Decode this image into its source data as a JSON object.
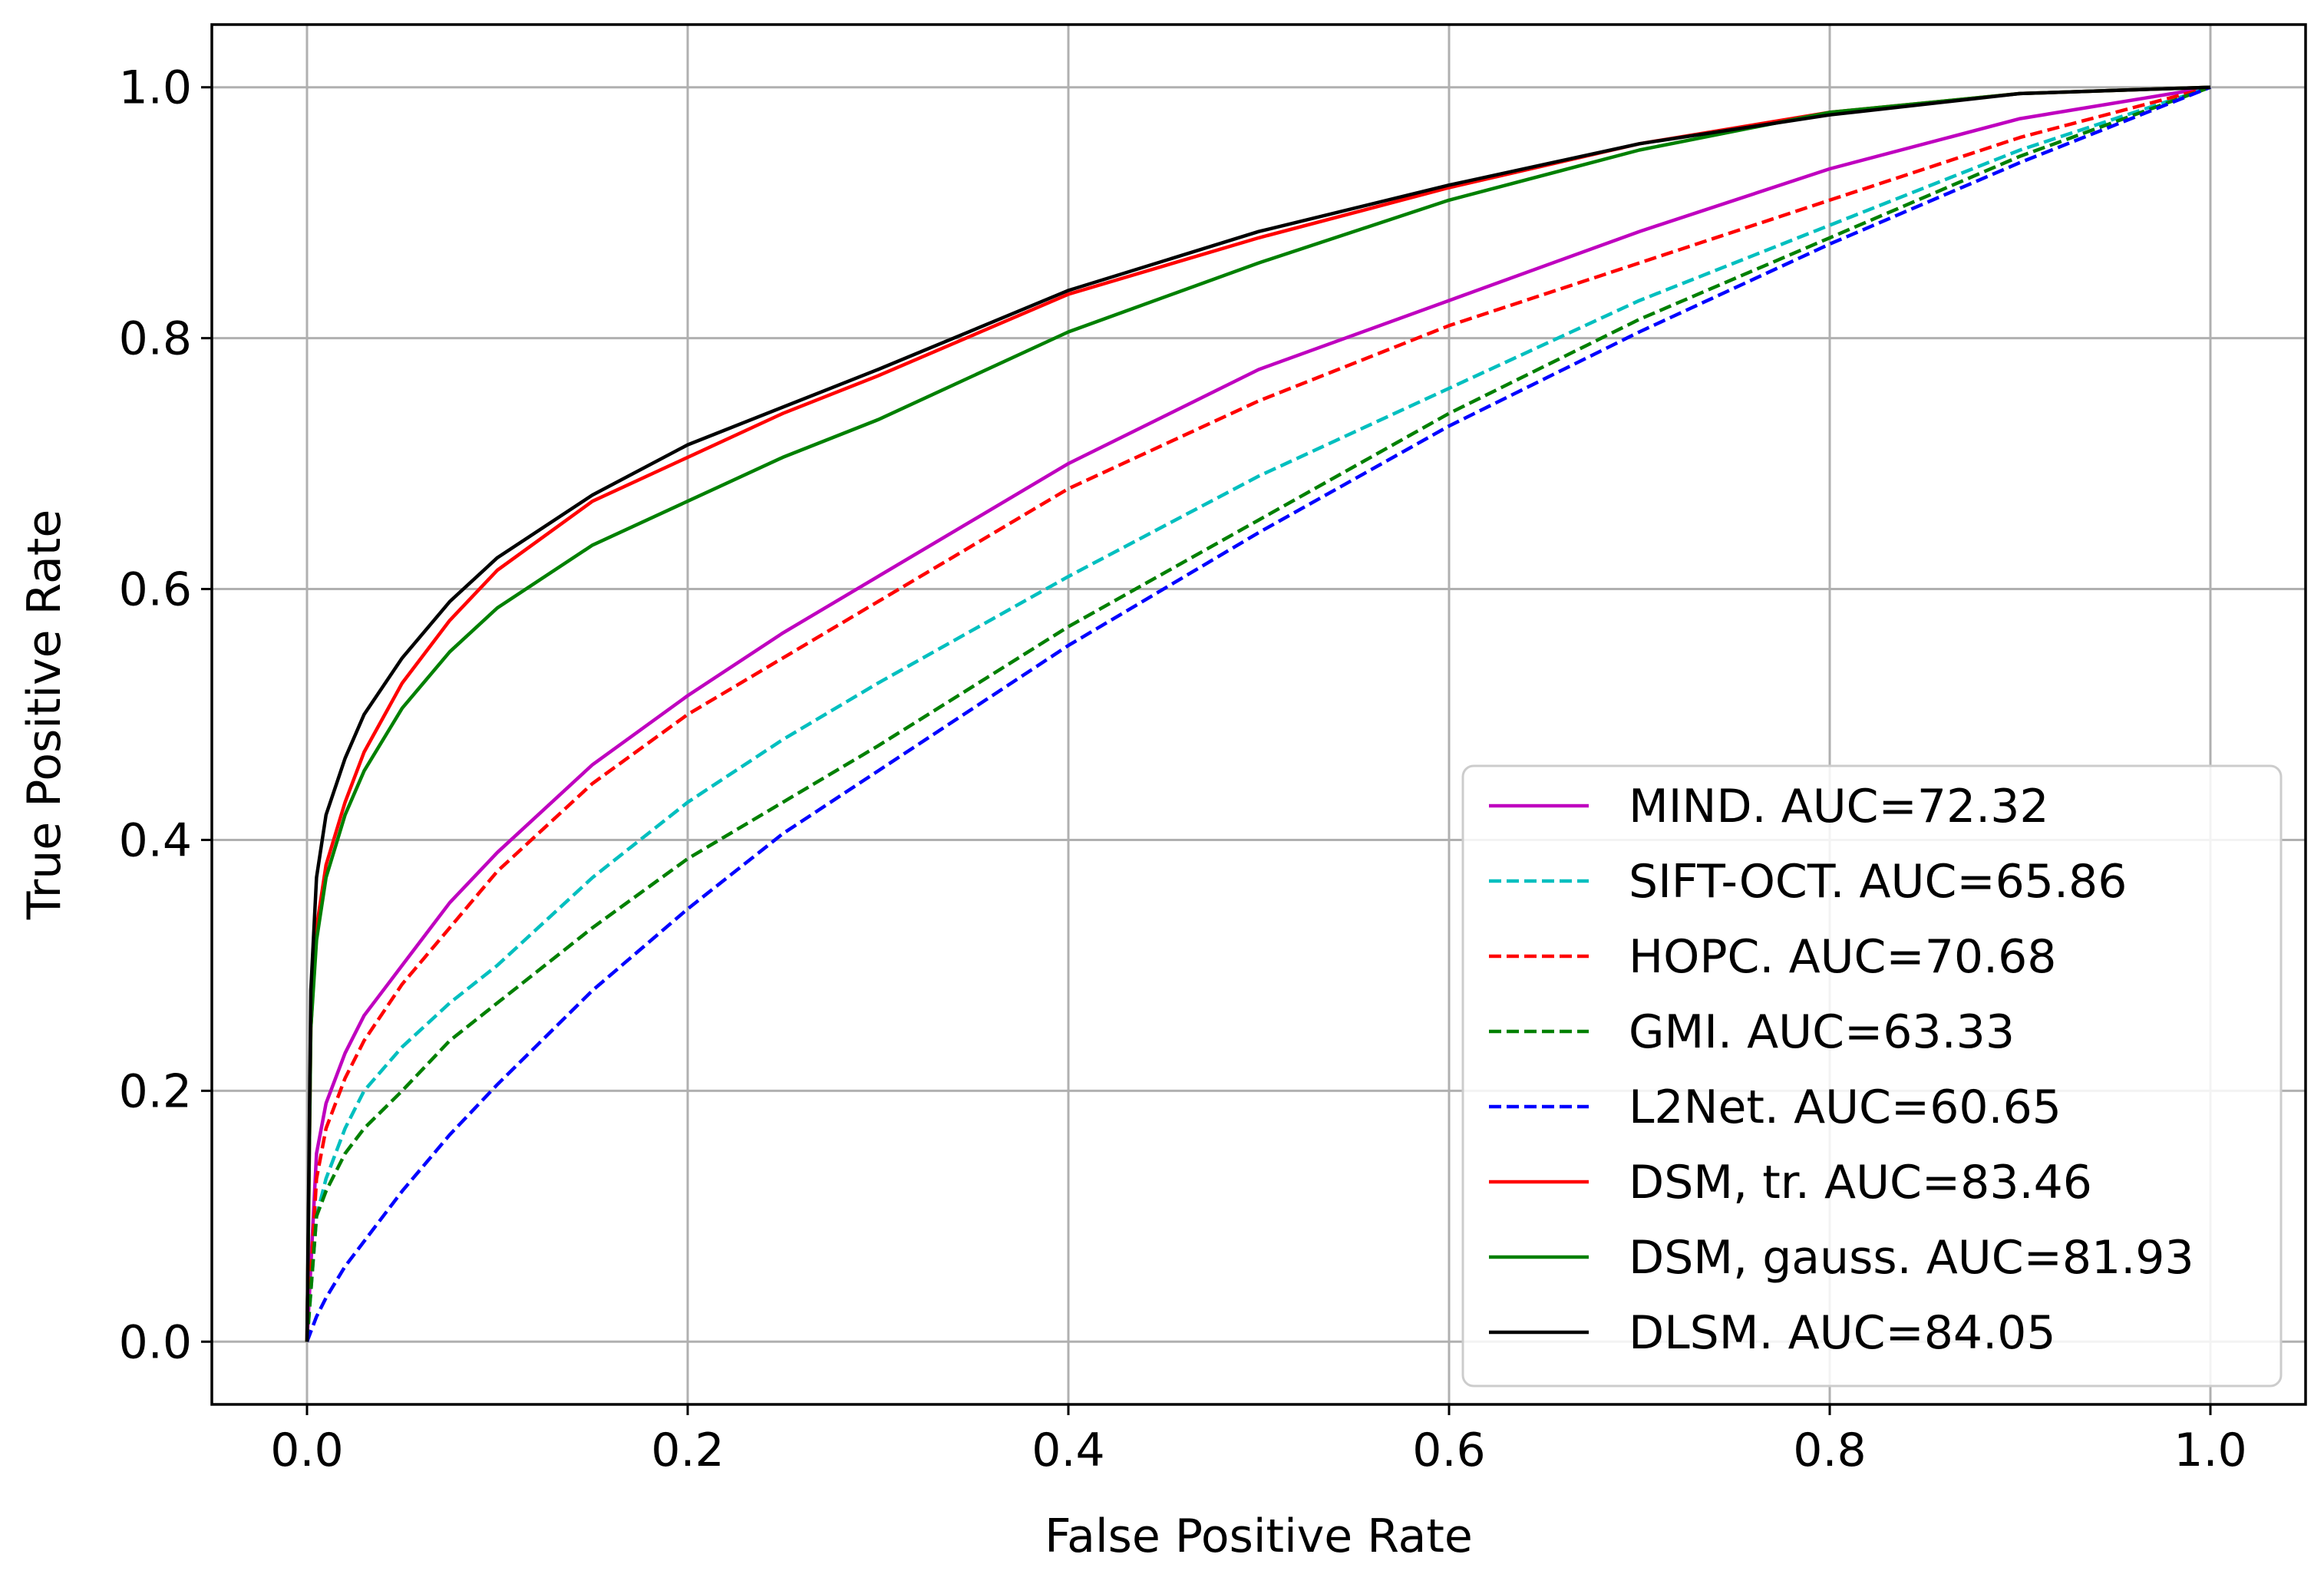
{
  "chart_data": {
    "type": "line",
    "title": "",
    "xlabel": "False Positive Rate",
    "ylabel": "True Positive Rate",
    "xlim": [
      -0.05,
      1.05
    ],
    "ylim": [
      -0.05,
      1.05
    ],
    "xticks": [
      0.0,
      0.2,
      0.4,
      0.6,
      0.8,
      1.0
    ],
    "yticks": [
      0.0,
      0.2,
      0.4,
      0.6,
      0.8,
      1.0
    ],
    "xtick_labels": [
      "0.0",
      "0.2",
      "0.4",
      "0.6",
      "0.8",
      "1.0"
    ],
    "ytick_labels": [
      "0.0",
      "0.2",
      "0.4",
      "0.6",
      "0.8",
      "1.0"
    ],
    "grid": true,
    "legend_position": "lower-right",
    "series": [
      {
        "name": "MIND. AUC=72.32",
        "color": "#bf00bf",
        "dash": "solid",
        "x": [
          0,
          0.005,
          0.01,
          0.02,
          0.03,
          0.05,
          0.075,
          0.1,
          0.15,
          0.2,
          0.25,
          0.3,
          0.4,
          0.5,
          0.6,
          0.7,
          0.8,
          0.9,
          1.0
        ],
        "y": [
          0,
          0.15,
          0.19,
          0.23,
          0.26,
          0.3,
          0.35,
          0.39,
          0.46,
          0.515,
          0.565,
          0.61,
          0.7,
          0.775,
          0.83,
          0.885,
          0.935,
          0.975,
          1.0
        ]
      },
      {
        "name": "SIFT-OCT. AUC=65.86",
        "color": "#00bfbf",
        "dash": "dashed",
        "x": [
          0,
          0.005,
          0.01,
          0.02,
          0.03,
          0.05,
          0.075,
          0.1,
          0.15,
          0.2,
          0.25,
          0.3,
          0.4,
          0.5,
          0.6,
          0.7,
          0.8,
          0.9,
          1.0
        ],
        "y": [
          0,
          0.1,
          0.13,
          0.17,
          0.2,
          0.235,
          0.27,
          0.3,
          0.37,
          0.43,
          0.48,
          0.525,
          0.61,
          0.69,
          0.76,
          0.83,
          0.89,
          0.95,
          1.0
        ]
      },
      {
        "name": "HOPC. AUC=70.68",
        "color": "#ff0000",
        "dash": "dashed",
        "x": [
          0,
          0.005,
          0.01,
          0.02,
          0.03,
          0.05,
          0.075,
          0.1,
          0.15,
          0.2,
          0.25,
          0.3,
          0.4,
          0.5,
          0.6,
          0.7,
          0.8,
          0.9,
          1.0
        ],
        "y": [
          0,
          0.13,
          0.17,
          0.21,
          0.24,
          0.285,
          0.33,
          0.375,
          0.445,
          0.5,
          0.545,
          0.59,
          0.68,
          0.75,
          0.81,
          0.86,
          0.91,
          0.96,
          1.0
        ]
      },
      {
        "name": "GMI. AUC=63.33",
        "color": "#008000",
        "dash": "dashed",
        "x": [
          0,
          0.005,
          0.01,
          0.02,
          0.03,
          0.05,
          0.075,
          0.1,
          0.15,
          0.2,
          0.25,
          0.3,
          0.4,
          0.5,
          0.6,
          0.7,
          0.8,
          0.9,
          1.0
        ],
        "y": [
          0,
          0.1,
          0.12,
          0.15,
          0.17,
          0.2,
          0.24,
          0.27,
          0.33,
          0.385,
          0.43,
          0.475,
          0.57,
          0.655,
          0.74,
          0.815,
          0.88,
          0.945,
          1.0
        ]
      },
      {
        "name": "L2Net. AUC=60.65",
        "color": "#0000ff",
        "dash": "dashed",
        "x": [
          0,
          0.005,
          0.01,
          0.02,
          0.03,
          0.05,
          0.075,
          0.1,
          0.15,
          0.2,
          0.25,
          0.3,
          0.4,
          0.5,
          0.6,
          0.7,
          0.8,
          0.9,
          1.0
        ],
        "y": [
          0,
          0.02,
          0.035,
          0.06,
          0.08,
          0.12,
          0.165,
          0.205,
          0.28,
          0.345,
          0.405,
          0.455,
          0.555,
          0.645,
          0.73,
          0.805,
          0.875,
          0.94,
          1.0
        ]
      },
      {
        "name": "DSM, tr. AUC=83.46",
        "color": "#ff0000",
        "dash": "solid",
        "x": [
          0,
          0.002,
          0.005,
          0.01,
          0.02,
          0.03,
          0.05,
          0.075,
          0.1,
          0.15,
          0.2,
          0.25,
          0.3,
          0.4,
          0.5,
          0.6,
          0.7,
          0.8,
          0.9,
          1.0
        ],
        "y": [
          0,
          0.25,
          0.33,
          0.38,
          0.43,
          0.47,
          0.525,
          0.575,
          0.615,
          0.67,
          0.705,
          0.74,
          0.77,
          0.835,
          0.88,
          0.92,
          0.955,
          0.98,
          0.995,
          1.0
        ]
      },
      {
        "name": "DSM, gauss. AUC=81.93",
        "color": "#008000",
        "dash": "solid",
        "x": [
          0,
          0.002,
          0.005,
          0.01,
          0.02,
          0.03,
          0.05,
          0.075,
          0.1,
          0.15,
          0.2,
          0.25,
          0.3,
          0.4,
          0.5,
          0.6,
          0.7,
          0.8,
          0.9,
          1.0
        ],
        "y": [
          0,
          0.25,
          0.32,
          0.37,
          0.42,
          0.455,
          0.505,
          0.55,
          0.585,
          0.635,
          0.67,
          0.705,
          0.735,
          0.805,
          0.86,
          0.91,
          0.95,
          0.98,
          0.995,
          1.0
        ]
      },
      {
        "name": "DLSM. AUC=84.05",
        "color": "#000000",
        "dash": "solid",
        "x": [
          0,
          0.002,
          0.005,
          0.01,
          0.02,
          0.03,
          0.05,
          0.075,
          0.1,
          0.15,
          0.2,
          0.25,
          0.3,
          0.4,
          0.5,
          0.6,
          0.7,
          0.8,
          0.9,
          1.0
        ],
        "y": [
          0,
          0.28,
          0.37,
          0.42,
          0.465,
          0.5,
          0.545,
          0.59,
          0.625,
          0.675,
          0.715,
          0.745,
          0.775,
          0.838,
          0.885,
          0.922,
          0.955,
          0.978,
          0.995,
          1.0
        ]
      }
    ]
  }
}
